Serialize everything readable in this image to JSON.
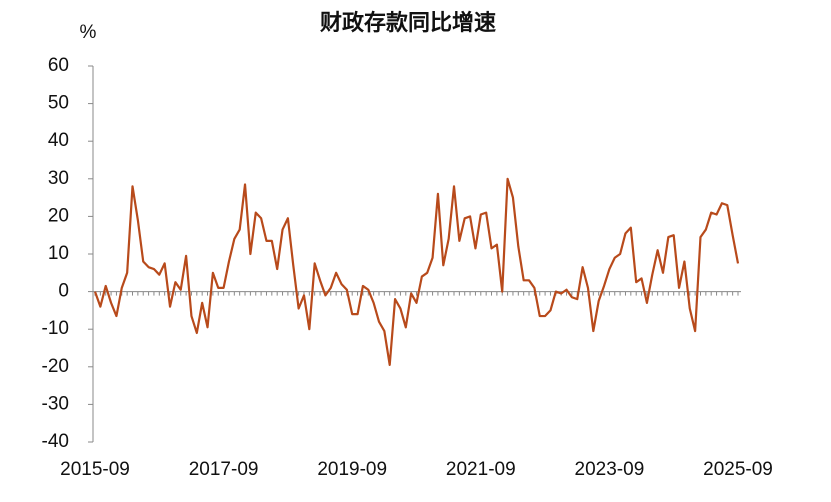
{
  "chart_data": {
    "type": "line",
    "title": "财政存款同比增速",
    "y_label": "%",
    "color": "#b84a1b",
    "categories": [
      "2015-09",
      null,
      null,
      null,
      null,
      null,
      null,
      null,
      null,
      null,
      null,
      null,
      null,
      null,
      null,
      null,
      null,
      null,
      null,
      null,
      null,
      null,
      null,
      null,
      "2017-09",
      null,
      null,
      null,
      null,
      null,
      null,
      null,
      null,
      null,
      null,
      null,
      null,
      null,
      null,
      null,
      null,
      null,
      null,
      null,
      null,
      null,
      null,
      null,
      "2019-09",
      null,
      null,
      null,
      null,
      null,
      null,
      null,
      null,
      null,
      null,
      null,
      null,
      null,
      null,
      null,
      null,
      null,
      null,
      null,
      null,
      null,
      null,
      null,
      "2021-09",
      null,
      null,
      null,
      null,
      null,
      null,
      null,
      null,
      null,
      null,
      null,
      null,
      null,
      null,
      null,
      null,
      null,
      null,
      null,
      null,
      null,
      null,
      null,
      "2023-09",
      null,
      null,
      null,
      null,
      null,
      null,
      null,
      null,
      null,
      null,
      null,
      null,
      null,
      null,
      null,
      null,
      null,
      null,
      null,
      null,
      null,
      null,
      null,
      "2025-09"
    ],
    "values": [
      0,
      -4,
      1.5,
      -3,
      -6.5,
      1,
      5,
      28,
      19,
      8,
      6.5,
      6,
      4.5,
      7.5,
      -4,
      2.5,
      0.5,
      9.5,
      -6.5,
      -11,
      -3,
      -9.5,
      5,
      1,
      1,
      8,
      14,
      16.5,
      28.5,
      10,
      21,
      19.5,
      13.5,
      13.5,
      6,
      16.5,
      19.5,
      7,
      -4.5,
      -1,
      -10,
      7.5,
      3,
      -1,
      1,
      5,
      2,
      0.5,
      -6,
      -6,
      1.5,
      0.5,
      -3,
      -8,
      -10.5,
      -19.5,
      -2,
      -4.5,
      -9.5,
      -0.5,
      -3,
      4,
      5,
      9,
      26,
      7,
      14,
      28,
      13.5,
      19.5,
      20,
      11.5,
      20.5,
      21,
      11.5,
      12.5,
      0,
      30,
      25,
      12,
      3,
      3,
      1,
      -6.5,
      -6.5,
      -5,
      0,
      -0.5,
      0.5,
      -1.5,
      -2,
      6.5,
      1,
      -10.5,
      -2.5,
      1.5,
      6,
      9,
      10,
      15.5,
      17,
      2.5,
      3.5,
      -3,
      4.5,
      11,
      5,
      14.5,
      15,
      1,
      8,
      -4.5,
      -10.5,
      14.5,
      16.5,
      21,
      20.5,
      23.5,
      23,
      15,
      7.5
    ],
    "ylim": [
      -40,
      60
    ],
    "yticks": [
      -40,
      -30,
      -20,
      -10,
      0,
      10,
      20,
      30,
      40,
      50,
      60
    ]
  }
}
